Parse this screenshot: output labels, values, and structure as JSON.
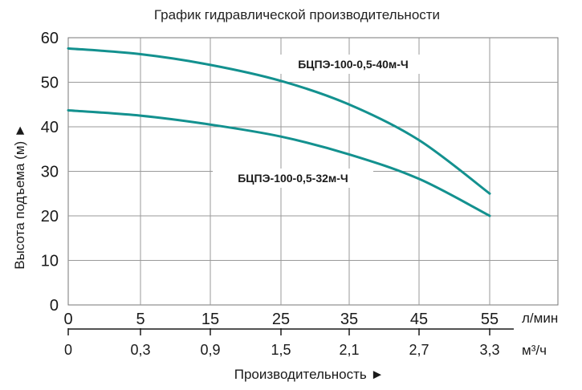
{
  "chart_data": {
    "type": "line",
    "title": "График гидравлической производительности",
    "ylabel": "Высота подъема (м) ►",
    "xlabel": "Производительность ►",
    "x_unit_primary": "л/мин",
    "x_unit_secondary": "м³/ч",
    "ylim": [
      0,
      60
    ],
    "yticks": [
      "0",
      "10",
      "20",
      "30",
      "40",
      "50",
      "60"
    ],
    "xticks_primary": [
      "0",
      "5",
      "15",
      "25",
      "35",
      "45",
      "55"
    ],
    "xticks_secondary": [
      "0",
      "0,3",
      "0,9",
      "1,5",
      "2,1",
      "2,7",
      "3,3"
    ],
    "grid": true,
    "colors": {
      "curve": "#13918f"
    },
    "series": [
      {
        "name": "БЦПЭ-100-0,5-40м-Ч",
        "x": [
          0,
          5,
          15,
          25,
          35,
          45,
          55
        ],
        "y": [
          57.6,
          56.3,
          53.9,
          50.3,
          45.0,
          37.0,
          25.0
        ]
      },
      {
        "name": "БЦПЭ-100-0,5-32м-Ч",
        "x": [
          0,
          5,
          15,
          25,
          35,
          45,
          55
        ],
        "y": [
          43.7,
          42.5,
          40.5,
          37.8,
          33.8,
          28.3,
          20.0
        ]
      }
    ]
  }
}
